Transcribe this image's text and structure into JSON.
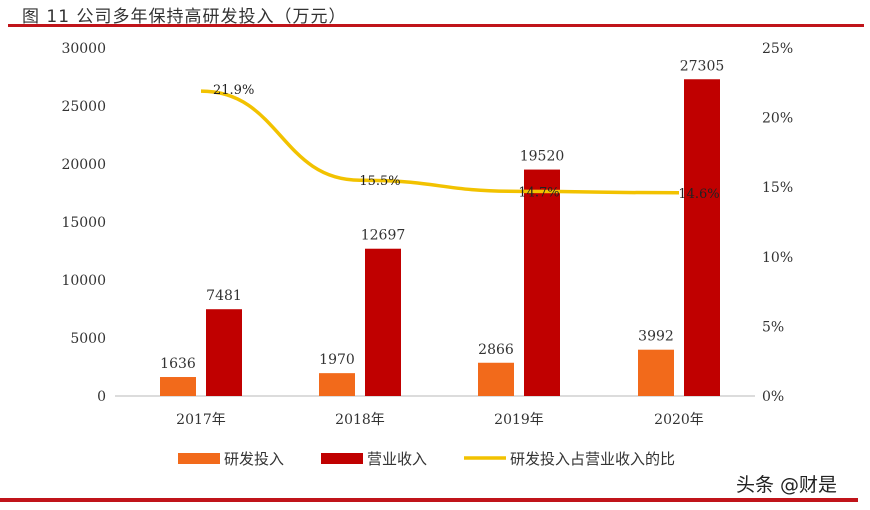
{
  "title": "图 11  公司多年保持高研发投入（万元）",
  "watermark": "头条 @财是",
  "colors": {
    "rd": "#f26a1b",
    "revenue": "#c00000",
    "ratio": "#f2c200",
    "frame": "#c0141a"
  },
  "chart_data": {
    "type": "bar+line",
    "categories": [
      "2017年",
      "2018年",
      "2019年",
      "2020年"
    ],
    "series": [
      {
        "name": "研发投入",
        "type": "bar",
        "axis": "left",
        "values": [
          1636,
          1970,
          2866,
          3992
        ],
        "labels": [
          "1636",
          "1970",
          "2866",
          "3992"
        ]
      },
      {
        "name": "营业收入",
        "type": "bar",
        "axis": "left",
        "values": [
          7481,
          12697,
          19520,
          27305
        ],
        "labels": [
          "7481",
          "12697",
          "19520",
          "27305"
        ]
      },
      {
        "name": "研发投入占营业收入的比",
        "type": "line",
        "axis": "right",
        "values": [
          21.9,
          15.5,
          14.7,
          14.6
        ],
        "labels": [
          "21.9%",
          "15.5%",
          "14.7%",
          "14.6%"
        ]
      }
    ],
    "y_left": {
      "range": [
        0,
        30000
      ],
      "ticks": [
        "0",
        "5000",
        "10000",
        "15000",
        "20000",
        "25000",
        "30000"
      ]
    },
    "y_right": {
      "range": [
        0,
        25
      ],
      "ticks": [
        "0%",
        "5%",
        "10%",
        "15%",
        "20%",
        "25%"
      ]
    },
    "grid": false,
    "legend": "bottom"
  }
}
